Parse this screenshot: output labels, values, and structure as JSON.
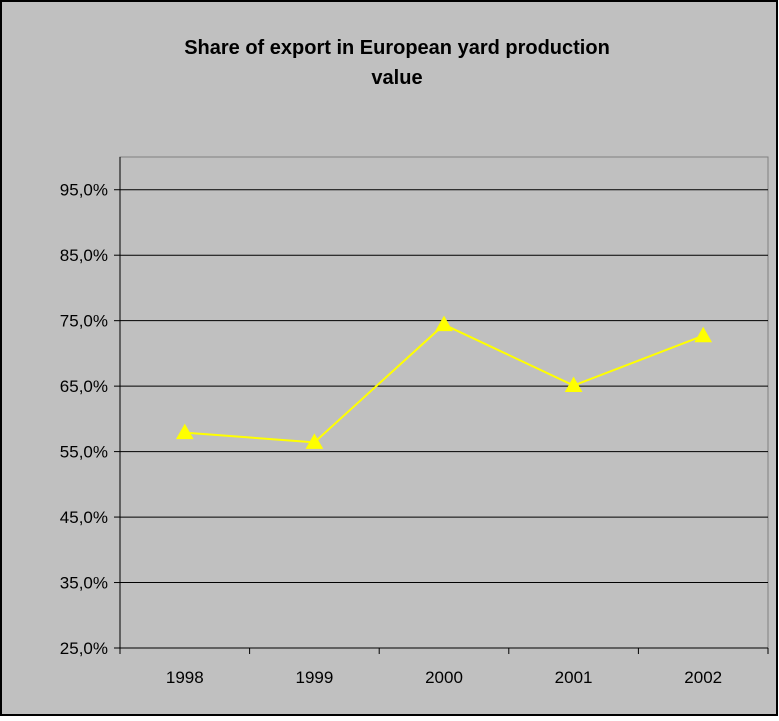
{
  "chart_data": {
    "type": "line",
    "title_line1": "Share of export in European yard production",
    "title_line2": "value",
    "categories": [
      "1998",
      "1999",
      "2000",
      "2001",
      "2002"
    ],
    "series": [
      {
        "values": [
          57.9,
          56.4,
          74.4,
          65.1,
          72.7
        ]
      }
    ],
    "y_ticks": [
      "25,0%",
      "35,0%",
      "45,0%",
      "55,0%",
      "65,0%",
      "75,0%",
      "85,0%",
      "95,0%"
    ],
    "ylim": [
      25,
      100
    ],
    "grid": true,
    "legend": "none",
    "colors": {
      "background": "#c0c0c0",
      "plot_area": "#c0c0c0",
      "series_line": "#ffff00",
      "gridline": "#000000"
    }
  }
}
